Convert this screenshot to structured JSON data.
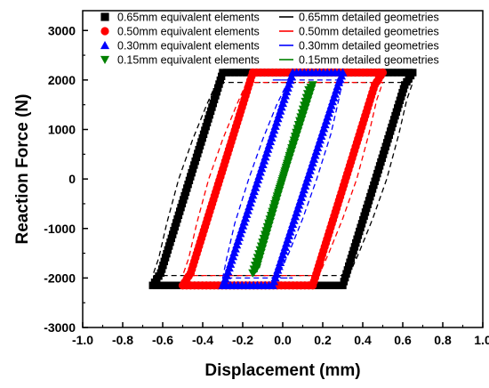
{
  "chart_data": {
    "type": "line",
    "title": "",
    "xlabel": "Displacement (mm)",
    "ylabel": "Reaction Force (N)",
    "xlim": [
      -1.0,
      1.0
    ],
    "ylim": [
      -3000,
      3400
    ],
    "x_ticks": [
      "-1.0",
      "-0.8",
      "-0.6",
      "-0.4",
      "-0.2",
      "0.0",
      "0.2",
      "0.4",
      "0.6",
      "0.8",
      "1.0"
    ],
    "y_ticks": [
      "-3000",
      "-2000",
      "-1000",
      "0",
      "1000",
      "2000",
      "3000"
    ],
    "grid": false,
    "legend_position": "top",
    "series": [
      {
        "name": "0.65mm equivalent elements",
        "kind": "equivalent",
        "marker": "square",
        "color": "#000000",
        "x": [
          -0.3,
          0.65,
          0.61,
          0.3,
          -0.65,
          -0.61,
          -0.3
        ],
        "y": [
          2150,
          2150,
          1900,
          -2150,
          -2150,
          -1900,
          2150
        ]
      },
      {
        "name": "0.50mm equivalent elements",
        "kind": "equivalent",
        "marker": "circle",
        "color": "#ff0000",
        "x": [
          -0.15,
          0.5,
          0.46,
          0.15,
          -0.5,
          -0.46,
          -0.15
        ],
        "y": [
          2150,
          2150,
          1900,
          -2150,
          -2150,
          -1900,
          2150
        ]
      },
      {
        "name": "0.30mm equivalent elements",
        "kind": "equivalent",
        "marker": "triangle-up",
        "color": "#0000ff",
        "x": [
          0.05,
          0.3,
          0.28,
          -0.05,
          -0.3,
          -0.28,
          0.05
        ],
        "y": [
          2150,
          2150,
          1950,
          -2150,
          -2150,
          -1950,
          2150
        ]
      },
      {
        "name": "0.15mm equivalent elements",
        "kind": "equivalent",
        "marker": "triangle-down",
        "color": "#008000",
        "x": [
          0.15,
          0.13,
          -0.13,
          -0.15,
          0.15
        ],
        "y": [
          1900,
          1800,
          -1800,
          -1900,
          1900
        ]
      },
      {
        "name": "0.65mm detailed geometries",
        "kind": "detailed",
        "color": "#000000",
        "x": [
          -0.33,
          -0.38,
          -0.45,
          -0.52,
          -0.58,
          -0.62,
          -0.65,
          -0.3,
          0.33,
          0.38,
          0.45,
          0.52,
          0.58,
          0.62,
          0.65,
          0.3,
          -0.33
        ],
        "y": [
          1950,
          1500,
          800,
          0,
          -900,
          -1600,
          -1950,
          -1950,
          -1950,
          -1500,
          -800,
          0,
          900,
          1600,
          1950,
          1950,
          1950
        ]
      },
      {
        "name": "0.50mm detailed geometries",
        "kind": "detailed",
        "color": "#ff0000",
        "x": [
          -0.18,
          -0.23,
          -0.3,
          -0.37,
          -0.43,
          -0.47,
          -0.5,
          -0.15,
          0.18,
          0.23,
          0.3,
          0.37,
          0.43,
          0.47,
          0.5,
          0.15,
          -0.18
        ],
        "y": [
          1950,
          1500,
          800,
          0,
          -900,
          -1600,
          -1950,
          -1950,
          -1950,
          -1500,
          -800,
          0,
          900,
          1600,
          1950,
          1950,
          1950
        ]
      },
      {
        "name": "0.30mm detailed geometries",
        "kind": "detailed",
        "color": "#0000ff",
        "x": [
          0.03,
          -0.03,
          -0.1,
          -0.17,
          -0.24,
          -0.28,
          -0.3,
          0.05,
          -0.03,
          0.03,
          0.1,
          0.17,
          0.24,
          0.28,
          0.3,
          -0.05,
          0.03
        ],
        "y": [
          2000,
          1500,
          800,
          0,
          -900,
          -1600,
          -2000,
          -2000,
          -2000,
          -1500,
          -800,
          0,
          900,
          1600,
          2000,
          2000,
          2000
        ]
      },
      {
        "name": "0.15mm detailed geometries",
        "kind": "detailed",
        "color": "#008000",
        "x": [
          -0.14,
          -0.06,
          0.0,
          0.06,
          0.14,
          0.12,
          0.05,
          0.0,
          -0.05,
          -0.12,
          -0.14
        ],
        "y": [
          -1900,
          -900,
          0,
          900,
          1900,
          1850,
          700,
          0,
          -700,
          -1850,
          -1900
        ]
      }
    ]
  }
}
